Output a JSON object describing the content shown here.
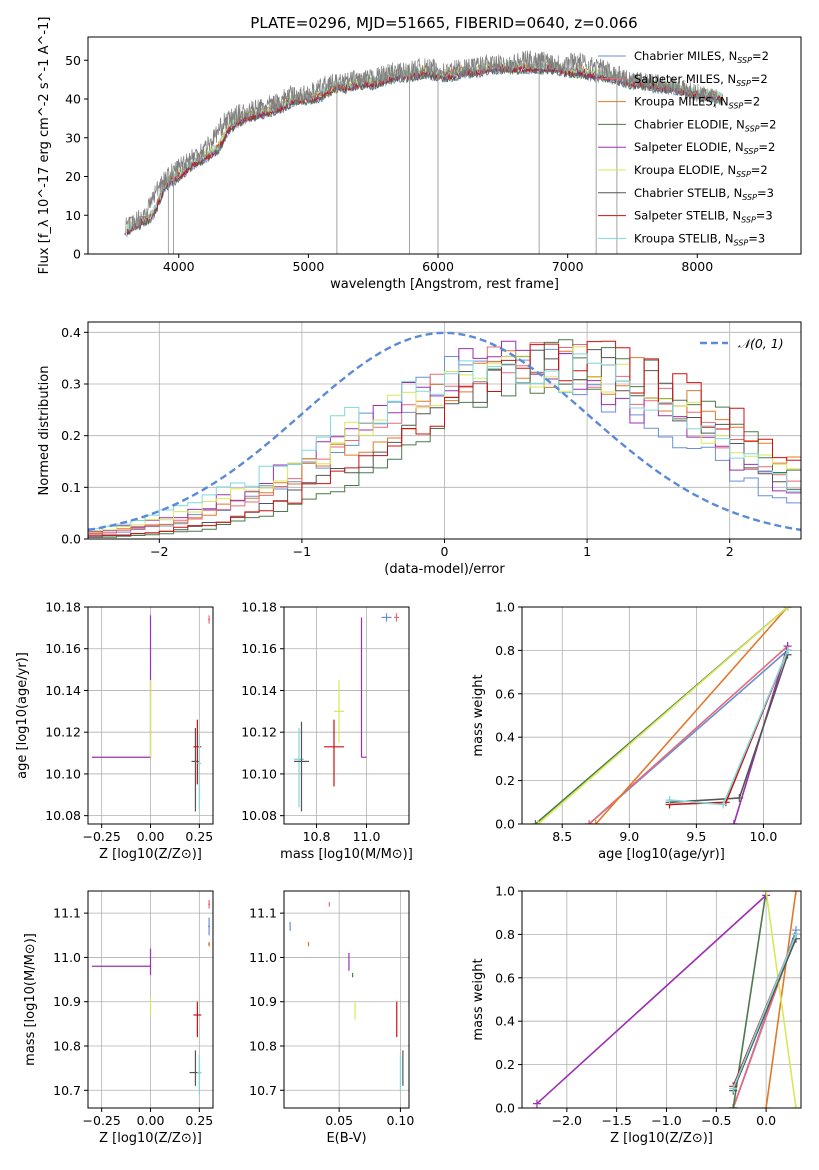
{
  "figure": {
    "title": "PLATE=0296, MJD=51665, FIBERID=0640, z=0.066"
  },
  "colors": {
    "chabrier_miles": "#6a8fd6",
    "salpeter_miles": "#e86a7a",
    "kroupa_miles": "#e07a2a",
    "chabrier_elodie": "#4a7a4a",
    "salpeter_elodie": "#9b30b0",
    "kroupa_elodie": "#d8e85a",
    "chabrier_stelib": "#555555",
    "salpeter_stelib": "#cc1111",
    "kroupa_stelib": "#7fd8d8",
    "data": "#808080",
    "gaussian": "#5b8bd6"
  },
  "chart_data": [
    {
      "type": "line",
      "title": "PLATE=0296, MJD=51665, FIBERID=0640, z=0.066",
      "xlabel": "wavelength [Angstrom, rest frame]",
      "ylabel": "Flux [f_λ 10^-17 erg cm^-2 s^-1 A^-1]",
      "xlim": [
        3300,
        8800
      ],
      "ylim": [
        0,
        56
      ],
      "xticks": [
        4000,
        5000,
        6000,
        7000,
        8000
      ],
      "yticks": [
        0,
        10,
        20,
        30,
        40,
        50
      ],
      "grid": false,
      "legend_position": "top-right",
      "legend": [
        "Chabrier MILES, N_SSP=2",
        "Salpeter MILES, N_SSP=2",
        "Kroupa MILES, N_SSP=2",
        "Chabrier ELODIE, N_SSP=2",
        "Salpeter ELODIE, N_SSP=2",
        "Kroupa ELODIE, N_SSP=2",
        "Chabrier STELIB, N_SSP=3",
        "Salpeter STELIB, N_SSP=3",
        "Kroupa STELIB, N_SSP=3"
      ],
      "data_spectrum": {
        "x": [
          3580,
          3650,
          3750,
          3850,
          3950,
          4050,
          4150,
          4250,
          4350,
          4450,
          4550,
          4650,
          4750,
          4850,
          4950,
          5050,
          5150,
          5250,
          5350,
          5450,
          5550,
          5650,
          5750,
          5850,
          5950,
          6050,
          6150,
          6250,
          6350,
          6450,
          6550,
          6650,
          6750,
          6850,
          6950,
          7050,
          7150,
          7250,
          7350,
          7450,
          7550,
          7650,
          7750,
          7850,
          7950,
          8050,
          8150
        ],
        "y": [
          7,
          8,
          11,
          18,
          21,
          24,
          26,
          29,
          34,
          36,
          37,
          38,
          39,
          41,
          41,
          42,
          44,
          44,
          45,
          45,
          46,
          47,
          47,
          48,
          48,
          47,
          48,
          48,
          49,
          49,
          49,
          50,
          50,
          50,
          49,
          50,
          49,
          48,
          47,
          45,
          45,
          44,
          44,
          43,
          42,
          41,
          40
        ]
      },
      "model_continuum": {
        "x": [
          3600,
          3700,
          3800,
          3900,
          4000,
          4100,
          4200,
          4300,
          4400,
          4500,
          4600,
          4700,
          4800,
          4900,
          5000,
          5100,
          5200,
          5300,
          5400,
          5500,
          5600,
          5700,
          5800,
          5900,
          6000,
          6100,
          6200,
          6300,
          6400,
          6500,
          6600,
          6700,
          6800,
          6900,
          7000,
          7100,
          7200,
          7300,
          7400,
          7500,
          7600,
          7700,
          7800,
          7900,
          8000,
          8100,
          8200
        ],
        "y": [
          6,
          8,
          10,
          18,
          20,
          23,
          25,
          27,
          33,
          35,
          36,
          37,
          38,
          40,
          40,
          41,
          43,
          43,
          44,
          44,
          45,
          46,
          46,
          47,
          46,
          46,
          47,
          47,
          48,
          48,
          48,
          48,
          48,
          48,
          47,
          47,
          46,
          46,
          45,
          44,
          44,
          43,
          43,
          42,
          41,
          41,
          40
        ]
      },
      "mask_lines_x": [
        3920,
        3960,
        5220,
        5780,
        6000,
        6780,
        7220,
        7380
      ]
    },
    {
      "type": "line",
      "xlabel": "(data-model)/error",
      "ylabel": "Normed distribution",
      "xlim": [
        -2.5,
        2.5
      ],
      "ylim": [
        0,
        0.42
      ],
      "xticks": [
        -2,
        -1,
        0,
        1,
        2
      ],
      "yticks": [
        0.0,
        0.1,
        0.2,
        0.3,
        0.4
      ],
      "grid": true,
      "legend_position": "top-right",
      "legend": [
        "𝒩(0, 1)"
      ],
      "gaussian": {
        "mean": 0,
        "sigma": 1
      }
    },
    {
      "type": "scatter",
      "xlabel": "Z [log10(Z/Z⊙)]",
      "ylabel": "age  [log10(age/yr)]",
      "xlim": [
        -0.32,
        0.32
      ],
      "ylim": [
        10.076,
        10.18
      ],
      "xticks": [
        -0.25,
        0.0,
        0.25
      ],
      "yticks": [
        10.08,
        10.1,
        10.12,
        10.14,
        10.16,
        10.18
      ],
      "grid": true,
      "points": [
        {
          "series": "Salpeter ELODIE",
          "x": 0.0,
          "y": 10.108,
          "xerr": [
            0.3,
            0.0
          ],
          "yerr": [
            0.0,
            0.068
          ]
        },
        {
          "series": "Kroupa ELODIE",
          "x": 0.0,
          "y": 10.108,
          "xerr": [
            0.0,
            0.0
          ],
          "yerr": [
            0.0,
            0.037
          ]
        },
        {
          "series": "Chabrier STELIB",
          "x": 0.23,
          "y": 10.106,
          "xerr": [
            0.02,
            0.02
          ],
          "yerr": [
            0.024,
            0.016
          ]
        },
        {
          "series": "Salpeter STELIB",
          "x": 0.24,
          "y": 10.113,
          "xerr": [
            0.02,
            0.02
          ],
          "yerr": [
            0.018,
            0.013
          ]
        },
        {
          "series": "Kroupa STELIB",
          "x": 0.25,
          "y": 10.105,
          "xerr": [
            0.01,
            0.01
          ],
          "yerr": [
            0.022,
            0.014
          ]
        },
        {
          "series": "Salpeter MILES",
          "x": 0.3,
          "y": 10.174,
          "xerr": [
            0.005,
            0.005
          ],
          "yerr": [
            0.002,
            0.002
          ]
        }
      ]
    },
    {
      "type": "scatter",
      "xlabel": "mass [log10(M/M⊙)]",
      "xlim": [
        10.67,
        11.17
      ],
      "ylim": [
        10.076,
        10.18
      ],
      "xticks": [
        10.8,
        11.0
      ],
      "yticks": [
        10.08,
        10.1,
        10.12,
        10.14,
        10.16,
        10.18
      ],
      "grid": true,
      "points": [
        {
          "series": "Kroupa STELIB",
          "x": 10.73,
          "y": 10.107,
          "xerr": [
            0.02,
            0.02
          ],
          "yerr": [
            0.023,
            0.015
          ]
        },
        {
          "series": "Chabrier STELIB",
          "x": 10.74,
          "y": 10.106,
          "xerr": [
            0.03,
            0.03
          ],
          "yerr": [
            0.024,
            0.019
          ]
        },
        {
          "series": "Salpeter STELIB",
          "x": 10.87,
          "y": 10.113,
          "xerr": [
            0.04,
            0.04
          ],
          "yerr": [
            0.019,
            0.013
          ]
        },
        {
          "series": "Kroupa ELODIE",
          "x": 10.89,
          "y": 10.13,
          "xerr": [
            0.02,
            0.02
          ],
          "yerr": [
            0.015,
            0.015
          ]
        },
        {
          "series": "Salpeter ELODIE",
          "x": 10.98,
          "y": 10.108,
          "xerr": [
            0.0,
            0.02
          ],
          "yerr": [
            0.0,
            0.067
          ]
        },
        {
          "series": "Chabrier MILES",
          "x": 11.08,
          "y": 10.175,
          "xerr": [
            0.02,
            0.02
          ],
          "yerr": [
            0.002,
            0.002
          ]
        },
        {
          "series": "Salpeter MILES",
          "x": 11.12,
          "y": 10.175,
          "xerr": [
            0.01,
            0.01
          ],
          "yerr": [
            0.002,
            0.002
          ]
        }
      ]
    },
    {
      "type": "line",
      "xlabel": "age  [log10(age/yr)]",
      "ylabel": "mass weight",
      "xlim": [
        8.2,
        10.28
      ],
      "ylim": [
        0,
        1.0
      ],
      "xticks": [
        8.5,
        9.0,
        9.5,
        10.0
      ],
      "yticks": [
        0.0,
        0.2,
        0.4,
        0.6,
        0.8,
        1.0
      ],
      "grid": true,
      "series": [
        {
          "name": "Chabrier MILES",
          "x": [
            8.7,
            10.18
          ],
          "y": [
            0.0,
            0.8
          ]
        },
        {
          "name": "Salpeter MILES",
          "x": [
            8.7,
            10.18
          ],
          "y": [
            0.0,
            0.82
          ]
        },
        {
          "name": "Kroupa MILES",
          "x": [
            8.75,
            10.18
          ],
          "y": [
            0.0,
            1.0
          ]
        },
        {
          "name": "Chabrier ELODIE",
          "x": [
            8.3,
            10.18
          ],
          "y": [
            0.0,
            1.0
          ]
        },
        {
          "name": "Salpeter ELODIE",
          "x": [
            9.78,
            10.18
          ],
          "y": [
            0.0,
            0.82
          ]
        },
        {
          "name": "Kroupa ELODIE",
          "x": [
            8.32,
            10.18
          ],
          "y": [
            0.0,
            1.0
          ]
        },
        {
          "name": "Chabrier STELIB",
          "x": [
            9.3,
            9.82,
            10.18
          ],
          "y": [
            0.1,
            0.12,
            0.78
          ]
        },
        {
          "name": "Salpeter STELIB",
          "x": [
            9.3,
            9.72,
            10.18
          ],
          "y": [
            0.09,
            0.1,
            0.8
          ]
        },
        {
          "name": "Kroupa STELIB",
          "x": [
            9.3,
            9.7,
            10.18
          ],
          "y": [
            0.11,
            0.09,
            0.8
          ]
        }
      ]
    },
    {
      "type": "scatter",
      "xlabel": "Z [log10(Z/Z⊙)]",
      "ylabel": "mass [log10(M/M⊙)]",
      "xlim": [
        -0.32,
        0.32
      ],
      "ylim": [
        10.66,
        11.15
      ],
      "xticks": [
        -0.25,
        0.0,
        0.25
      ],
      "yticks": [
        10.7,
        10.8,
        10.9,
        11.0,
        11.1
      ],
      "grid": true,
      "points": [
        {
          "series": "Salpeter ELODIE",
          "x": 0.0,
          "y": 10.98,
          "xerr": [
            0.3,
            0.0
          ],
          "yerr": [
            0.02,
            0.04
          ]
        },
        {
          "series": "Kroupa ELODIE",
          "x": 0.0,
          "y": 10.89,
          "xerr": [
            0.0,
            0.0
          ],
          "yerr": [
            0.02,
            0.02
          ]
        },
        {
          "series": "Chabrier STELIB",
          "x": 0.23,
          "y": 10.74,
          "xerr": [
            0.03,
            0.03
          ],
          "yerr": [
            0.03,
            0.05
          ]
        },
        {
          "series": "Salpeter STELIB",
          "x": 0.24,
          "y": 10.87,
          "xerr": [
            0.02,
            0.02
          ],
          "yerr": [
            0.05,
            0.03
          ]
        },
        {
          "series": "Kroupa STELIB",
          "x": 0.25,
          "y": 10.74,
          "xerr": [
            0.01,
            0.01
          ],
          "yerr": [
            0.05,
            0.04
          ]
        },
        {
          "series": "Chabrier MILES",
          "x": 0.3,
          "y": 11.07,
          "xerr": [
            0.005,
            0.005
          ],
          "yerr": [
            0.02,
            0.02
          ]
        },
        {
          "series": "Salpeter MILES",
          "x": 0.3,
          "y": 11.12,
          "xerr": [
            0.005,
            0.005
          ],
          "yerr": [
            0.01,
            0.01
          ]
        },
        {
          "series": "Kroupa MILES",
          "x": 0.3,
          "y": 11.03,
          "xerr": [
            0.005,
            0.005
          ],
          "yerr": [
            0.005,
            0.005
          ]
        }
      ]
    },
    {
      "type": "scatter",
      "xlabel": "E(B-V)",
      "xlim": [
        0.005,
        0.107
      ],
      "ylim": [
        10.66,
        11.15
      ],
      "xticks": [
        0.05,
        0.1
      ],
      "yticks": [
        10.7,
        10.8,
        10.9,
        11.0,
        11.1
      ],
      "grid": true,
      "points": [
        {
          "series": "Chabrier MILES",
          "x": 0.01,
          "y": 11.07,
          "xerr": [
            0.0,
            0.0
          ],
          "yerr": [
            0.01,
            0.01
          ]
        },
        {
          "series": "Kroupa MILES",
          "x": 0.025,
          "y": 11.03,
          "xerr": [
            0.0,
            0.0
          ],
          "yerr": [
            0.005,
            0.005
          ]
        },
        {
          "series": "Salpeter MILES",
          "x": 0.042,
          "y": 11.12,
          "xerr": [
            0.0,
            0.0
          ],
          "yerr": [
            0.005,
            0.005
          ]
        },
        {
          "series": "Salpeter ELODIE",
          "x": 0.058,
          "y": 10.99,
          "xerr": [
            0.0,
            0.0
          ],
          "yerr": [
            0.02,
            0.02
          ]
        },
        {
          "series": "Chabrier ELODIE",
          "x": 0.061,
          "y": 10.96,
          "xerr": [
            0.0,
            0.0
          ],
          "yerr": [
            0.005,
            0.005
          ]
        },
        {
          "series": "Kroupa ELODIE",
          "x": 0.063,
          "y": 10.88,
          "xerr": [
            0.0,
            0.0
          ],
          "yerr": [
            0.02,
            0.02
          ]
        },
        {
          "series": "Salpeter STELIB",
          "x": 0.097,
          "y": 10.86,
          "xerr": [
            0.0,
            0.0
          ],
          "yerr": [
            0.04,
            0.04
          ]
        },
        {
          "series": "Kroupa STELIB",
          "x": 0.1,
          "y": 10.74,
          "xerr": [
            0.0,
            0.0
          ],
          "yerr": [
            0.04,
            0.04
          ]
        },
        {
          "series": "Chabrier STELIB",
          "x": 0.102,
          "y": 10.75,
          "xerr": [
            0.0,
            0.0
          ],
          "yerr": [
            0.04,
            0.04
          ]
        }
      ]
    },
    {
      "type": "line",
      "xlabel": "Z [log10(Z/Z⊙)]",
      "ylabel": "mass weight",
      "xlim": [
        -2.45,
        0.35
      ],
      "ylim": [
        0,
        1.0
      ],
      "xticks": [
        -2.0,
        -1.5,
        -1.0,
        -0.5,
        0.0
      ],
      "yticks": [
        0.0,
        0.2,
        0.4,
        0.6,
        0.8,
        1.0
      ],
      "grid": true,
      "series": [
        {
          "name": "Chabrier MILES",
          "x": [
            -0.33,
            0.3
          ],
          "y": [
            0.0,
            0.82
          ]
        },
        {
          "name": "Salpeter MILES",
          "x": [
            -0.33,
            0.3
          ],
          "y": [
            0.0,
            0.8
          ]
        },
        {
          "name": "Kroupa MILES",
          "x": [
            0.0,
            0.3
          ],
          "y": [
            0.0,
            1.0
          ]
        },
        {
          "name": "Chabrier ELODIE",
          "x": [
            -0.33,
            0.0
          ],
          "y": [
            0.0,
            1.0
          ]
        },
        {
          "name": "Salpeter ELODIE",
          "x": [
            -2.3,
            0.0
          ],
          "y": [
            0.02,
            0.98
          ]
        },
        {
          "name": "Kroupa ELODIE",
          "x": [
            0.0,
            0.3
          ],
          "y": [
            1.0,
            0.0
          ]
        },
        {
          "name": "Chabrier STELIB",
          "x": [
            -0.33,
            0.3
          ],
          "y": [
            0.08,
            0.78
          ]
        },
        {
          "name": "Salpeter STELIB",
          "x": [
            -0.33,
            0.3
          ],
          "y": [
            0.1,
            0.8
          ]
        },
        {
          "name": "Kroupa STELIB",
          "x": [
            -0.33,
            0.3
          ],
          "y": [
            0.09,
            0.8
          ]
        }
      ]
    }
  ]
}
